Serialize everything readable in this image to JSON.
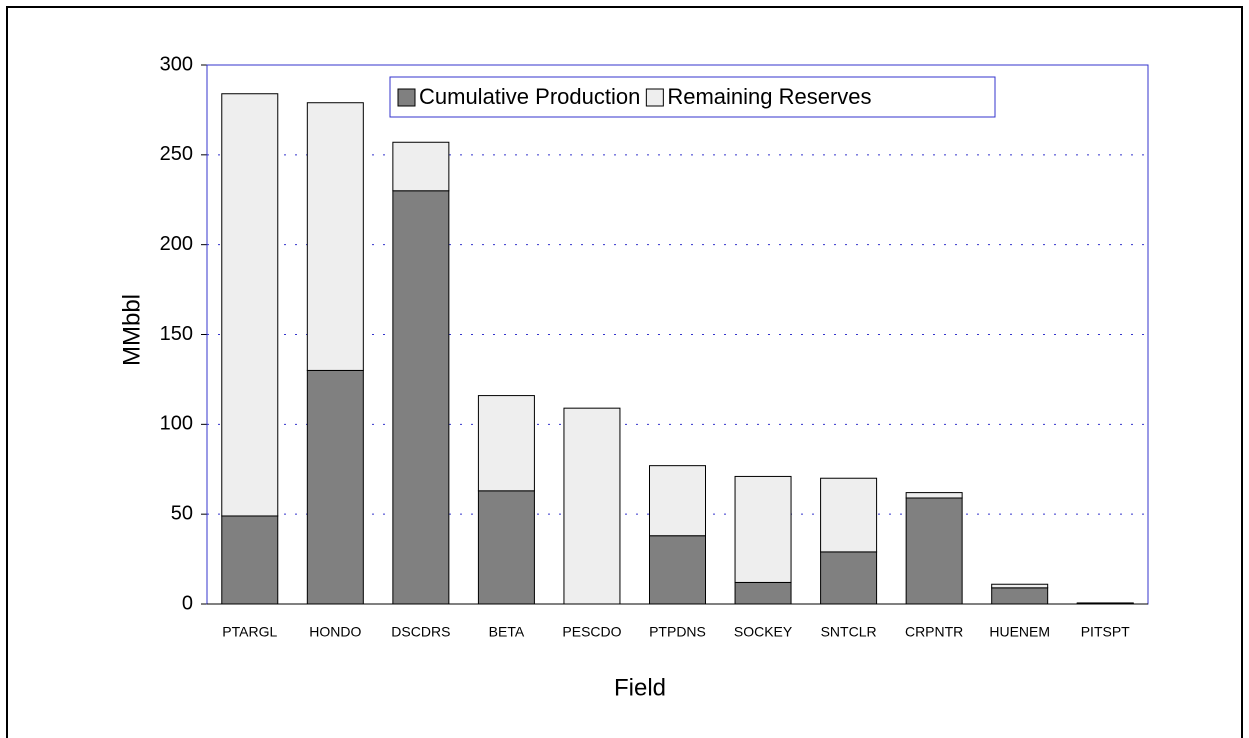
{
  "chart_data": {
    "type": "stacked-bar",
    "x_label": "Field",
    "y_label": "MMbbl",
    "categories": [
      "PTARGL",
      "HONDO",
      "DSCDRS",
      "BETA",
      "PESCDO",
      "PTPDNS",
      "SOCKEY",
      "SNTCLR",
      "CRPNTR",
      "HUENEM",
      "PITSPT"
    ],
    "series": [
      {
        "name": "Cumulative Production",
        "color": "#808080",
        "values": [
          49,
          130,
          230,
          63,
          0,
          38,
          12,
          29,
          59,
          9,
          0.3
        ]
      },
      {
        "name": "Remaining Reserves",
        "color": "#eeeeee",
        "values": [
          235,
          149,
          27,
          53,
          109,
          39,
          59,
          41,
          3,
          2,
          0.3
        ]
      }
    ],
    "ylim": [
      0,
      300
    ],
    "yticks": [
      0,
      50,
      100,
      150,
      200,
      250,
      300
    ],
    "grid": true,
    "legend": "top"
  }
}
